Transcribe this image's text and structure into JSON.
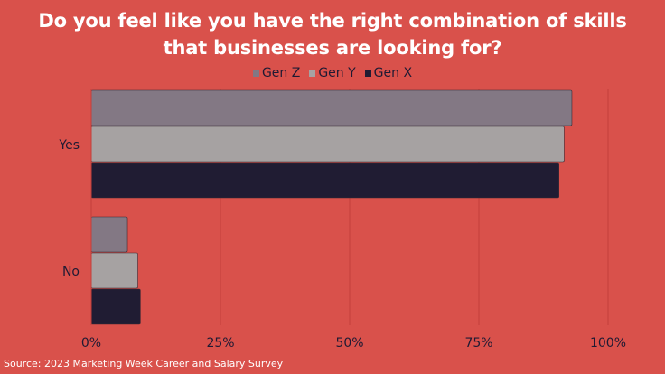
{
  "title_line1": "Do you feel like you have the right combination of skills",
  "title_line2": "that businesses are looking for?",
  "source": "Source: 2023 Marketing Week Career and Salary Survey",
  "colors": {
    "background": "#d9514b",
    "gen_z": "#837884",
    "gen_y": "#a6a2a2",
    "gen_x": "#201c33",
    "grid": "#c4403b",
    "text": "#1f1a33"
  },
  "chart_data": {
    "type": "bar",
    "orientation": "horizontal",
    "categories": [
      "Yes",
      "No"
    ],
    "series": [
      {
        "name": "Gen Z",
        "values": [
          93,
          7
        ]
      },
      {
        "name": "Gen Y",
        "values": [
          91.5,
          9
        ]
      },
      {
        "name": "Gen X",
        "values": [
          90.5,
          9.5
        ]
      }
    ],
    "xlim": [
      0,
      100
    ],
    "xticks": [
      "0%",
      "25%",
      "50%",
      "75%",
      "100%"
    ],
    "xtick_values": [
      0,
      25,
      50,
      75,
      100
    ],
    "legend_position": "top-center",
    "grid": true
  }
}
